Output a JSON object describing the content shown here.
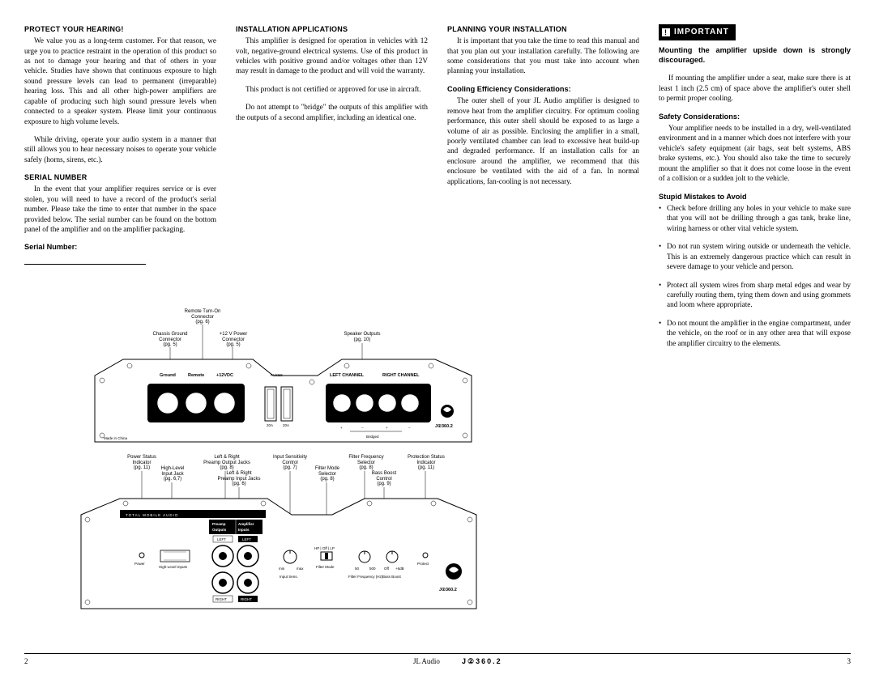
{
  "col1": {
    "h_protect": "PROTECT YOUR HEARING!",
    "p_protect1": "We value you as a long-term customer. For that reason, we urge you to practice restraint in the operation of this product so as not to damage your hearing and that of others in your vehicle. Studies have shown that continuous exposure to high sound pressure levels can lead to permanent (irreparable) hearing loss. This and all other high-power amplifiers are capable of producing such high sound pressure levels when connected to a speaker system. Please limit your continuous exposure to high volume levels.",
    "p_protect2": "While driving, operate your audio system in a manner that still allows you to hear necessary noises to operate your vehicle safely (horns, sirens, etc.).",
    "h_serial": "SERIAL NUMBER",
    "p_serial": "In the event that your amplifier requires service or is ever stolen, you will need to have a record of the product's serial number. Please take the time to enter that number in the space provided below. The serial number can be found on the bottom panel of the amplifier and on the amplifier packaging.",
    "serial_label": "Serial Number:"
  },
  "col2": {
    "h_install": "INSTALLATION APPLICATIONS",
    "p_install1": "This amplifier is designed for operation in vehicles with 12 volt, negative-ground electrical systems. Use of this product in vehicles with positive ground and/or voltages other than 12V may result in damage to the product and will void the warranty.",
    "p_install2": "This product is not certified or approved for use in aircraft.",
    "p_install3": "Do not attempt to \"bridge\" the outputs of this amplifier with the outputs of a second amplifier, including an identical one."
  },
  "col3": {
    "h_plan": "PLANNING YOUR INSTALLATION",
    "p_plan": "It is important that you take the time to read this manual and that you plan out your installation carefully. The following are some considerations that you must take into account when planning your installation.",
    "h_cool": "Cooling Efficiency Considerations:",
    "p_cool": "The outer shell of your JL Audio amplifier is designed to remove heat from the amplifier circuitry. For optimum cooling performance, this outer shell should be exposed to as large a volume of air as possible. Enclosing the amplifier in a small, poorly ventilated chamber can lead to excessive heat build-up and degraded performance. If an installation calls for an enclosure around the amplifier, we recommend that this enclosure be ventilated with the aid of a fan. In normal applications, fan-cooling is not necessary."
  },
  "col4": {
    "important": "IMPORTANT",
    "p_imp1": "Mounting the amplifier upside down is strongly discouraged.",
    "p_imp2": "If mounting the amplifier under a seat, make sure there is at least 1 inch (2.5 cm) of space above the amplifier's outer shell to permit proper cooling.",
    "h_safety": "Safety Considerations:",
    "p_safety": "Your amplifier needs to be installed in a dry, well-ventilated environment and in a manner which does not interfere with your vehicle's safety equipment (air bags, seat belt systems, ABS brake systems, etc.). You should also take the time to securely mount the amplifier so that it does not come loose in the event of a collision or a sudden jolt to the vehicle.",
    "h_stupid": "Stupid Mistakes to Avoid",
    "m1": "Check before drilling any holes in your vehicle to make sure that you will not be drilling through a gas tank, brake line, wiring harness or other vital vehicle system.",
    "m2": "Do not run system wiring outside or underneath the vehicle. This is an extremely dangerous practice which can result in severe damage to your vehicle and person.",
    "m3": "Protect all system wires from sharp metal edges and wear by carefully routing them, tying them down and using grommets and loom where appropriate.",
    "m4": "Do not mount the amplifier in the engine compartment, under the vehicle, on the roof or in any other area that will expose the amplifier circuitry to the elements."
  },
  "diagram_top": {
    "rto": "Remote Turn-On\nConnector\n(pg. 6)",
    "cgc": "Chassis Ground\nConnector\n(pg. 5)",
    "v12": "+12 V Power\nConnector\n(pg. 5)",
    "spo": "Speaker Outputs\n(pg. 10)",
    "made": "Made in China",
    "lbl_ground": "Ground",
    "lbl_remote": "Remote",
    "lbl_12vdc": "+12VDC",
    "lbl_fuses": "FUSES",
    "lbl_20a_1": "20A",
    "lbl_20a_2": "20A",
    "lbl_left": "LEFT CHANNEL",
    "lbl_right": "RIGHT CHANNEL",
    "lbl_bridged": "Bridged",
    "logo_text": "J②360.2"
  },
  "diagram_bottom": {
    "psi": "Power Status\nIndicator\n(pg. 11)",
    "hli": "High-Level\nInput Jack\n(pg. 6,7)",
    "lrpo": "Left & Right\nPreamp Output Jacks\n(pg. 8)",
    "lrpi": "Left & Right\nPreamp Input Jacks\n(pg. 6)",
    "isc": "Input Sensitivity\nControl\n(pg. 7)",
    "fms": "Filter Mode\nSelector\n(pg. 8)",
    "ffs": "Filter Frequency\nSelector\n(pg. 8)",
    "bbc": "Bass Boost\nControl\n(pg. 9)",
    "prsi": "Protection Status\nIndicator\n(pg. 11)",
    "tma": "TOTAL MOBILE AUDIO",
    "preamp_o": "Preamp\nOutputs",
    "amp_i": "Amplifier\nInputs",
    "lbl_power": "Power",
    "lbl_hli": "High-Level Inputs",
    "lbl_left": "LEFT",
    "lbl_right": "RIGHT",
    "lbl_min": "min",
    "lbl_max": "max",
    "lbl_isens": "Input Sens.",
    "lbl_hp": "HP | Off | LP",
    "lbl_fmode": "Filter Mode",
    "lbl_50": "50",
    "lbl_500": "500",
    "lbl_ff": "Filter Frequency (Hz)",
    "lbl_off": "Off",
    "lbl_6db": "+6dB",
    "lbl_bb": "Bass Boost",
    "lbl_protect": "Protect",
    "logo_text": "J②360.2"
  },
  "footer": {
    "left_page": "2",
    "jl": "JL Audio",
    "model": "J②360.2",
    "right_page": "3"
  }
}
